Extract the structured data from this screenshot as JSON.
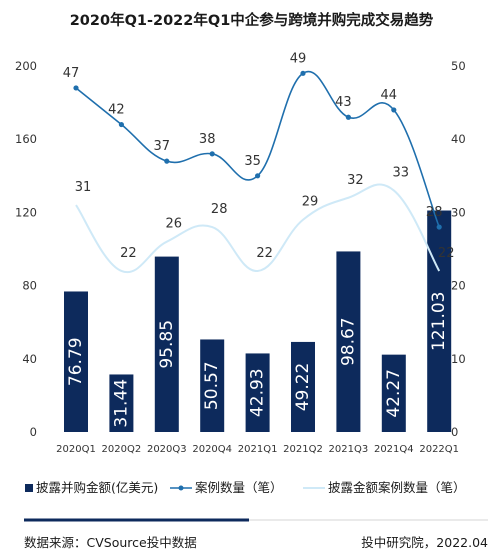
{
  "chart_data": {
    "type": "bar+line",
    "title": "2020年Q1-2022年Q1中企参与跨境并购完成交易趋势",
    "categories": [
      "2020Q1",
      "2020Q2",
      "2020Q3",
      "2020Q4",
      "2021Q1",
      "2021Q2",
      "2021Q3",
      "2021Q4",
      "2022Q1"
    ],
    "left_axis": {
      "ylim": [
        0,
        200
      ],
      "ticks": [
        0,
        40,
        80,
        120,
        160,
        200
      ]
    },
    "right_axis": {
      "ylim": [
        0,
        50
      ],
      "ticks": [
        0,
        10,
        20,
        30,
        40,
        50
      ]
    },
    "grid": false,
    "legend_position": "bottom",
    "series": [
      {
        "name": "披露并购金额(亿美元)",
        "type": "bar",
        "axis": "left",
        "color": "#0d2a5c",
        "values": [
          76.79,
          31.44,
          95.85,
          50.57,
          42.93,
          49.22,
          98.67,
          42.27,
          121.03
        ]
      },
      {
        "name": "案例数量（笔）",
        "type": "line",
        "axis": "right",
        "color": "#1f6fad",
        "marker": "circle",
        "values": [
          47,
          42,
          37,
          38,
          35,
          49,
          43,
          44,
          28
        ]
      },
      {
        "name": "披露金额案例数量（笔）",
        "type": "line",
        "axis": "right",
        "color": "#cfe9f7",
        "marker": "none",
        "values": [
          31,
          22,
          26,
          28,
          22,
          29,
          32,
          33,
          22
        ]
      }
    ]
  },
  "footer": {
    "source": "数据来源：CVSource投中数据",
    "credit": "投中研究院，2022.04"
  }
}
